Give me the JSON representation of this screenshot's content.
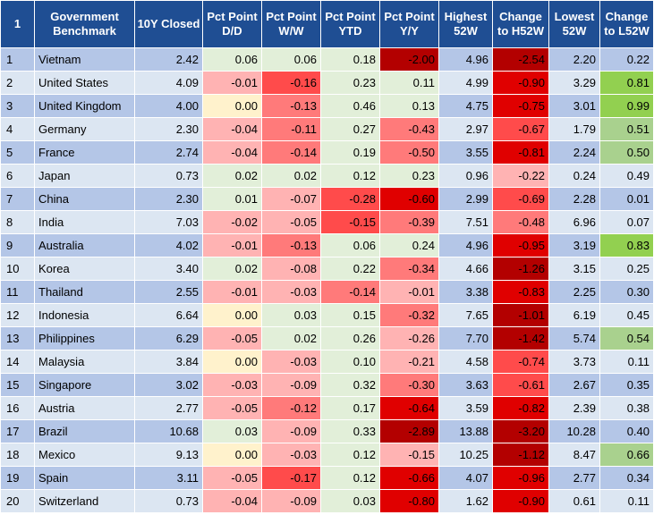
{
  "header": {
    "index": "1",
    "benchmark": "Government Benchmark",
    "closed": "10Y Closed",
    "dd": "Pct Point D/D",
    "ww": "Pct Point W/W",
    "ytd": "Pct Point YTD",
    "yy": "Pct Point Y/Y",
    "high": "Highest 52W",
    "chg_high": "Change to H52W",
    "low": "Lowest 52W",
    "chg_low": "Change to L52W"
  },
  "colors": {
    "header_bg": "#1f4e93",
    "header_text": "#ffffff",
    "row_idx_a": "#b4c6e7",
    "row_idx_b": "#dce6f2",
    "row_neutral_a": "#b4c6e7",
    "row_neutral_b": "#dce6f2",
    "cell_green": "#e2efd9",
    "cell_red_light": "#ffb3b3",
    "cell_red_mid": "#ff7a7a",
    "cell_red_strong": "#ff4b4b",
    "cell_red_dark": "#e00000",
    "cell_red_deep": "#b30000",
    "cell_yellow": "#fff2cc",
    "l52_green_bright": "#92d050",
    "l52_green_mid": "#a9d18e",
    "l52_green_light": "#e2efd9"
  },
  "rows": [
    {
      "idx": "1",
      "name": "Vietnam",
      "closed": "2.42",
      "dd": "0.06",
      "ww": "0.06",
      "ytd": "0.18",
      "yy": "-2.00",
      "high": "4.96",
      "chg_high": "-2.54",
      "low": "2.20",
      "chg_low": "0.22"
    },
    {
      "idx": "2",
      "name": "United States",
      "closed": "4.09",
      "dd": "-0.01",
      "ww": "-0.16",
      "ytd": "0.23",
      "yy": "0.11",
      "high": "4.99",
      "chg_high": "-0.90",
      "low": "3.29",
      "chg_low": "0.81"
    },
    {
      "idx": "3",
      "name": "United Kingdom",
      "closed": "4.00",
      "dd": "0.00",
      "ww": "-0.13",
      "ytd": "0.46",
      "yy": "0.13",
      "high": "4.75",
      "chg_high": "-0.75",
      "low": "3.01",
      "chg_low": "0.99"
    },
    {
      "idx": "4",
      "name": "Germany",
      "closed": "2.30",
      "dd": "-0.04",
      "ww": "-0.11",
      "ytd": "0.27",
      "yy": "-0.43",
      "high": "2.97",
      "chg_high": "-0.67",
      "low": "1.79",
      "chg_low": "0.51"
    },
    {
      "idx": "5",
      "name": "France",
      "closed": "2.74",
      "dd": "-0.04",
      "ww": "-0.14",
      "ytd": "0.19",
      "yy": "-0.50",
      "high": "3.55",
      "chg_high": "-0.81",
      "low": "2.24",
      "chg_low": "0.50"
    },
    {
      "idx": "6",
      "name": "Japan",
      "closed": "0.73",
      "dd": "0.02",
      "ww": "0.02",
      "ytd": "0.12",
      "yy": "0.23",
      "high": "0.96",
      "chg_high": "-0.22",
      "low": "0.24",
      "chg_low": "0.49"
    },
    {
      "idx": "7",
      "name": "China",
      "closed": "2.30",
      "dd": "0.01",
      "ww": "-0.07",
      "ytd": "-0.28",
      "yy": "-0.60",
      "high": "2.99",
      "chg_high": "-0.69",
      "low": "2.28",
      "chg_low": "0.01"
    },
    {
      "idx": "8",
      "name": "India",
      "closed": "7.03",
      "dd": "-0.02",
      "ww": "-0.05",
      "ytd": "-0.15",
      "yy": "-0.39",
      "high": "7.51",
      "chg_high": "-0.48",
      "low": "6.96",
      "chg_low": "0.07"
    },
    {
      "idx": "9",
      "name": "Australia",
      "closed": "4.02",
      "dd": "-0.01",
      "ww": "-0.13",
      "ytd": "0.06",
      "yy": "0.24",
      "high": "4.96",
      "chg_high": "-0.95",
      "low": "3.19",
      "chg_low": "0.83"
    },
    {
      "idx": "10",
      "name": "Korea",
      "closed": "3.40",
      "dd": "0.02",
      "ww": "-0.08",
      "ytd": "0.22",
      "yy": "-0.34",
      "high": "4.66",
      "chg_high": "-1.26",
      "low": "3.15",
      "chg_low": "0.25"
    },
    {
      "idx": "11",
      "name": "Thailand",
      "closed": "2.55",
      "dd": "-0.01",
      "ww": "-0.03",
      "ytd": "-0.14",
      "yy": "-0.01",
      "high": "3.38",
      "chg_high": "-0.83",
      "low": "2.25",
      "chg_low": "0.30"
    },
    {
      "idx": "12",
      "name": "Indonesia",
      "closed": "6.64",
      "dd": "0.00",
      "ww": "0.03",
      "ytd": "0.15",
      "yy": "-0.32",
      "high": "7.65",
      "chg_high": "-1.01",
      "low": "6.19",
      "chg_low": "0.45"
    },
    {
      "idx": "13",
      "name": "Philippines",
      "closed": "6.29",
      "dd": "-0.05",
      "ww": "0.02",
      "ytd": "0.26",
      "yy": "-0.26",
      "high": "7.70",
      "chg_high": "-1.42",
      "low": "5.74",
      "chg_low": "0.54"
    },
    {
      "idx": "14",
      "name": "Malaysia",
      "closed": "3.84",
      "dd": "0.00",
      "ww": "-0.03",
      "ytd": "0.10",
      "yy": "-0.21",
      "high": "4.58",
      "chg_high": "-0.74",
      "low": "3.73",
      "chg_low": "0.11"
    },
    {
      "idx": "15",
      "name": "Singapore",
      "closed": "3.02",
      "dd": "-0.03",
      "ww": "-0.09",
      "ytd": "0.32",
      "yy": "-0.30",
      "high": "3.63",
      "chg_high": "-0.61",
      "low": "2.67",
      "chg_low": "0.35"
    },
    {
      "idx": "16",
      "name": "Austria",
      "closed": "2.77",
      "dd": "-0.05",
      "ww": "-0.12",
      "ytd": "0.17",
      "yy": "-0.64",
      "high": "3.59",
      "chg_high": "-0.82",
      "low": "2.39",
      "chg_low": "0.38"
    },
    {
      "idx": "17",
      "name": "Brazil",
      "closed": "10.68",
      "dd": "0.03",
      "ww": "-0.09",
      "ytd": "0.33",
      "yy": "-2.89",
      "high": "13.88",
      "chg_high": "-3.20",
      "low": "10.28",
      "chg_low": "0.40"
    },
    {
      "idx": "18",
      "name": "Mexico",
      "closed": "9.13",
      "dd": "0.00",
      "ww": "-0.03",
      "ytd": "0.12",
      "yy": "-0.15",
      "high": "10.25",
      "chg_high": "-1.12",
      "low": "8.47",
      "chg_low": "0.66"
    },
    {
      "idx": "19",
      "name": "Spain",
      "closed": "3.11",
      "dd": "-0.05",
      "ww": "-0.17",
      "ytd": "0.12",
      "yy": "-0.66",
      "high": "4.07",
      "chg_high": "-0.96",
      "low": "2.77",
      "chg_low": "0.34"
    },
    {
      "idx": "20",
      "name": "Switzerland",
      "closed": "0.73",
      "dd": "-0.04",
      "ww": "-0.09",
      "ytd": "0.03",
      "yy": "-0.80",
      "high": "1.62",
      "chg_high": "-0.90",
      "low": "0.61",
      "chg_low": "0.11"
    }
  ]
}
